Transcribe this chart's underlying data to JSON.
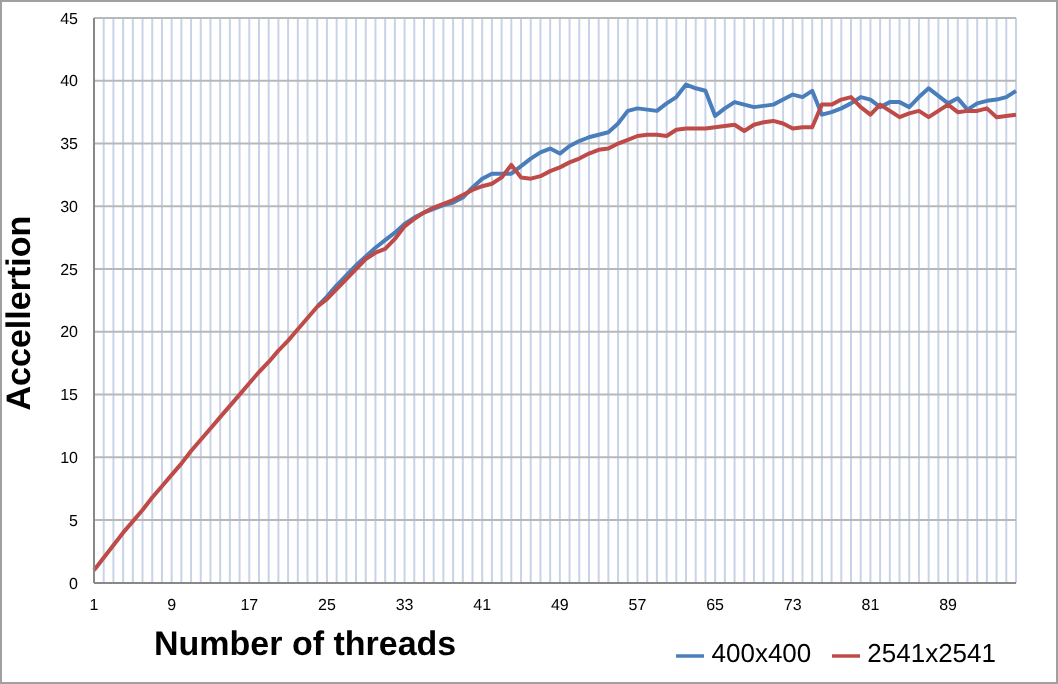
{
  "chart_data": {
    "type": "line",
    "xlabel": "Number of threads",
    "ylabel": "Accellertion",
    "categories": [
      "1",
      null,
      null,
      null,
      null,
      null,
      null,
      null,
      "9",
      null,
      null,
      null,
      null,
      null,
      null,
      null,
      "17",
      null,
      null,
      null,
      null,
      null,
      null,
      null,
      "25",
      null,
      null,
      null,
      null,
      null,
      null,
      null,
      "33",
      null,
      null,
      null,
      null,
      null,
      null,
      null,
      "41",
      null,
      null,
      null,
      null,
      null,
      null,
      null,
      "49",
      null,
      null,
      null,
      null,
      null,
      null,
      null,
      "57",
      null,
      null,
      null,
      null,
      null,
      null,
      null,
      "65",
      null,
      null,
      null,
      null,
      null,
      null,
      null,
      "73",
      null,
      null,
      null,
      null,
      null,
      null,
      null,
      "81",
      null,
      null,
      null,
      null,
      null,
      null,
      null,
      "89",
      null,
      null,
      null,
      null,
      null,
      null,
      null
    ],
    "series": [
      {
        "name": "400x400",
        "color": "#4a7ebb",
        "values": [
          null,
          null,
          null,
          null,
          null,
          null,
          null,
          null,
          null,
          null,
          null,
          null,
          null,
          null,
          null,
          null,
          null,
          null,
          null,
          null,
          null,
          null,
          null,
          22.0,
          22.8,
          23.7,
          24.5,
          25.3,
          26.0,
          26.7,
          27.3,
          27.9,
          28.6,
          29.1,
          29.5,
          29.8,
          30.1,
          30.3,
          30.7,
          31.5,
          32.2,
          32.6,
          32.6,
          32.6,
          33.2,
          33.8,
          34.3,
          34.6,
          34.2,
          34.8,
          35.2,
          35.5,
          35.7,
          35.9,
          36.6,
          37.6,
          37.8,
          37.7,
          37.6,
          38.2,
          38.7,
          39.7,
          39.4,
          39.2,
          37.2,
          37.8,
          38.3,
          38.1,
          37.9,
          38.0,
          38.1,
          38.5,
          38.9,
          38.7,
          39.2,
          37.3,
          37.5,
          37.8,
          38.2,
          38.7,
          38.5,
          37.9,
          38.3,
          38.3,
          37.9,
          38.7,
          39.4,
          38.8,
          38.2,
          38.6,
          37.7,
          38.2,
          38.4,
          38.5,
          38.7,
          39.2
        ]
      },
      {
        "name": "2541x2541",
        "color": "#be4b48",
        "values": [
          1.0,
          2.0,
          3.0,
          4.0,
          4.9,
          5.8,
          6.8,
          7.7,
          8.6,
          9.5,
          10.5,
          11.4,
          12.3,
          13.2,
          14.1,
          15.0,
          15.9,
          16.8,
          17.6,
          18.5,
          19.3,
          20.2,
          21.1,
          22.0,
          22.6,
          23.4,
          24.2,
          25.0,
          25.8,
          26.3,
          26.6,
          27.4,
          28.4,
          29.0,
          29.5,
          29.9,
          30.2,
          30.5,
          30.9,
          31.3,
          31.6,
          31.8,
          32.3,
          33.3,
          32.3,
          32.2,
          32.4,
          32.8,
          33.1,
          33.5,
          33.8,
          34.2,
          34.5,
          34.6,
          35.0,
          35.3,
          35.6,
          35.7,
          35.7,
          35.6,
          36.1,
          36.2,
          36.2,
          36.2,
          36.3,
          36.4,
          36.5,
          36.0,
          36.5,
          36.7,
          36.8,
          36.6,
          36.2,
          36.3,
          36.3,
          38.1,
          38.1,
          38.5,
          38.7,
          37.9,
          37.3,
          38.1,
          37.6,
          37.1,
          37.4,
          37.6,
          37.1,
          37.6,
          38.1,
          37.5,
          37.6,
          37.6,
          37.8,
          37.1,
          37.2,
          37.3
        ]
      }
    ],
    "ylim": [
      0,
      45
    ],
    "yticks": [
      0,
      5,
      10,
      15,
      20,
      25,
      30,
      35,
      40,
      45
    ],
    "grid": true,
    "legend": "bottom right",
    "marker": "none",
    "line_style": "solid"
  }
}
